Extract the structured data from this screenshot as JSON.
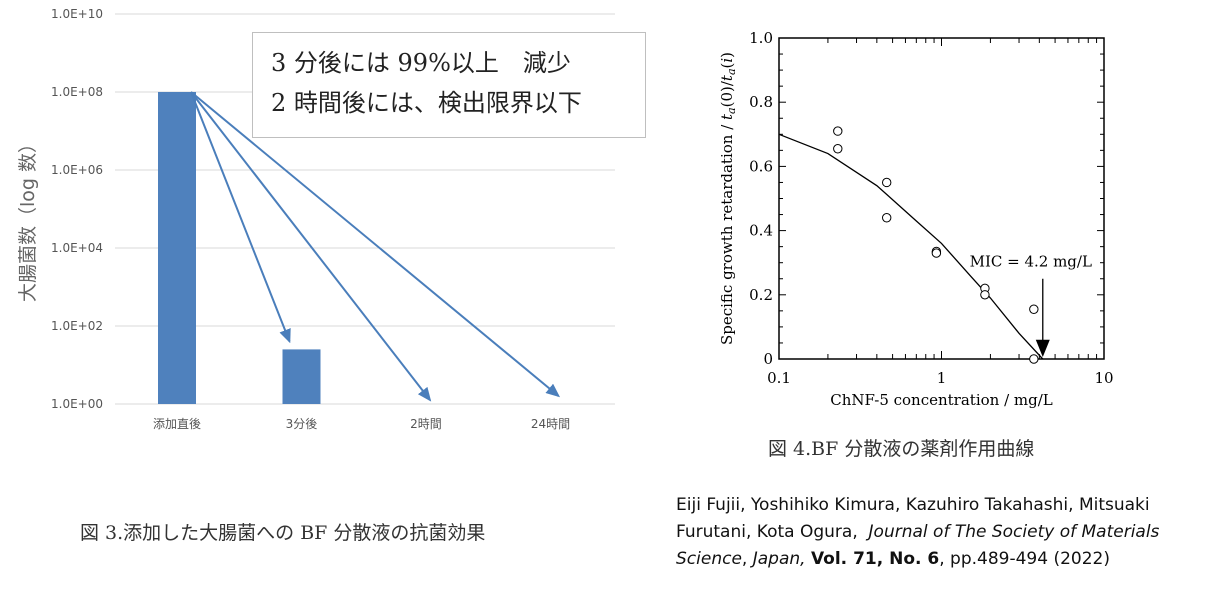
{
  "chart_data": [
    {
      "type": "bar",
      "title": "",
      "ylabel": "大腸菌数（log 数）",
      "xlabel": "",
      "y_scale": "log10",
      "ylim_log10": [
        0,
        10
      ],
      "yticks": [
        "1.0E+00",
        "1.0E+02",
        "1.0E+04",
        "1.0E+06",
        "1.0E+08",
        "1.0E+10"
      ],
      "yticks_log10": [
        0,
        2,
        4,
        6,
        8,
        10
      ],
      "categories": [
        "添加直後",
        "3分後",
        "2時間",
        "24時間"
      ],
      "values_log10": [
        8.0,
        1.4,
        null,
        null
      ],
      "bar_color": "#4f81bd",
      "arrow_color": "#4a7ebb",
      "annotation_lines": [
        "3 分後には 99%以上　減少",
        "2 時間後には、検出限界以下"
      ],
      "caption": "図 3.添加した大腸菌への BF 分散液の抗菌効果"
    },
    {
      "type": "scatter",
      "x_scale": "log10",
      "xlim": [
        0.1,
        10
      ],
      "ylim": [
        0,
        1.0
      ],
      "xlabel": "ChNF-5 concentration / mg/L",
      "ylabel_parts": [
        "Specific growth retardation / ",
        "t",
        "a",
        "(0)/",
        "t",
        "a",
        "(",
        "i",
        ")"
      ],
      "xticks": [
        "0.1",
        "1",
        "10"
      ],
      "xticks_values": [
        0.1,
        1,
        10
      ],
      "yticks": [
        "0",
        "0.2",
        "0.4",
        "0.6",
        "0.8",
        "1.0"
      ],
      "yticks_values": [
        0,
        0.2,
        0.4,
        0.6,
        0.8,
        1.0
      ],
      "points": [
        {
          "x": 0.23,
          "y": 0.71
        },
        {
          "x": 0.23,
          "y": 0.655
        },
        {
          "x": 0.46,
          "y": 0.55
        },
        {
          "x": 0.46,
          "y": 0.44
        },
        {
          "x": 0.93,
          "y": 0.335
        },
        {
          "x": 0.93,
          "y": 0.33
        },
        {
          "x": 1.85,
          "y": 0.22
        },
        {
          "x": 1.85,
          "y": 0.2
        },
        {
          "x": 3.7,
          "y": 0.155
        },
        {
          "x": 3.7,
          "y": 0.0
        }
      ],
      "fit_curve": [
        {
          "x": 0.1,
          "y": 0.7
        },
        {
          "x": 0.2,
          "y": 0.64
        },
        {
          "x": 0.4,
          "y": 0.54
        },
        {
          "x": 0.7,
          "y": 0.43
        },
        {
          "x": 1.0,
          "y": 0.36
        },
        {
          "x": 1.5,
          "y": 0.26
        },
        {
          "x": 2.0,
          "y": 0.19
        },
        {
          "x": 3.0,
          "y": 0.08
        },
        {
          "x": 4.2,
          "y": 0.0
        }
      ],
      "mic_label": "MIC = 4.2 mg/L",
      "mic_x": 4.2,
      "caption": "図 4.BF 分散液の薬剤作用曲線"
    }
  ],
  "citation": {
    "authors_line1": "Eiji Fujii, Yoshihiko Kimura, Kazuhiro Takahashi, Mitsuaki",
    "authors_line2": "Furutani, Kota Ogura,",
    "journal_a": "Journal of The Society of Materials",
    "journal_b": "Science",
    "comma": ",",
    "journal_c": "Japan,",
    "volume": "Vol. 71, No. 6",
    "pages": ", pp.489-494 (2022)"
  }
}
